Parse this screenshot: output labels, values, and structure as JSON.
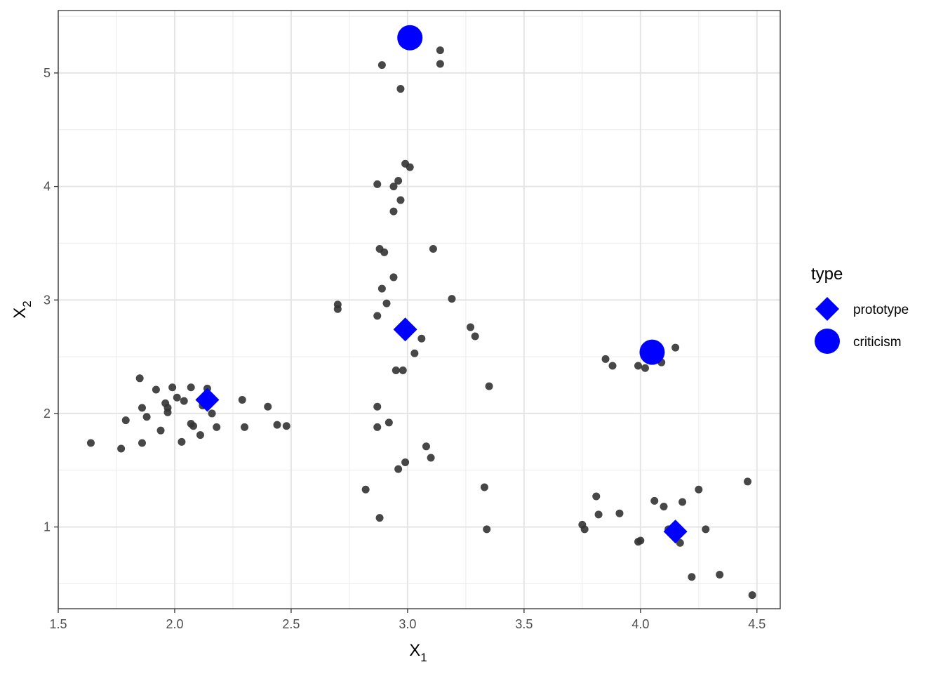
{
  "chart_data": {
    "type": "scatter",
    "xlabel": {
      "main": "X",
      "sub": "1"
    },
    "ylabel": {
      "main": "X",
      "sub": "2"
    },
    "xlim": [
      1.5,
      4.6
    ],
    "ylim": [
      0.28,
      5.55
    ],
    "x_ticks": [
      1.5,
      2.0,
      2.5,
      3.0,
      3.5,
      4.0,
      4.5
    ],
    "x_tick_labels": [
      "1.5",
      "2.0",
      "2.5",
      "3.0",
      "3.5",
      "4.0",
      "4.5"
    ],
    "y_ticks": [
      1,
      2,
      3,
      4,
      5
    ],
    "y_tick_labels": [
      "1",
      "2",
      "3",
      "4",
      "5"
    ],
    "grid": true,
    "legend": {
      "title": "type",
      "placement": "right",
      "entries": [
        {
          "label": "prototype",
          "shape": "diamond",
          "color": "#0000ff"
        },
        {
          "label": "criticism",
          "shape": "circle",
          "color": "#0000ff"
        }
      ]
    },
    "data_color": "#333333",
    "highlight_color": "#0000ff",
    "points": [
      [
        1.64,
        1.74
      ],
      [
        1.77,
        1.69
      ],
      [
        1.79,
        1.94
      ],
      [
        1.85,
        2.31
      ],
      [
        1.86,
        2.05
      ],
      [
        1.86,
        1.74
      ],
      [
        1.88,
        1.97
      ],
      [
        1.92,
        2.21
      ],
      [
        1.94,
        1.85
      ],
      [
        1.96,
        2.09
      ],
      [
        1.97,
        2.05
      ],
      [
        1.97,
        2.01
      ],
      [
        1.99,
        2.23
      ],
      [
        2.01,
        2.14
      ],
      [
        2.03,
        1.75
      ],
      [
        2.04,
        2.11
      ],
      [
        2.07,
        2.23
      ],
      [
        2.07,
        1.91
      ],
      [
        2.08,
        1.89
      ],
      [
        2.11,
        1.81
      ],
      [
        2.12,
        2.07
      ],
      [
        2.14,
        2.22
      ],
      [
        2.16,
        2.0
      ],
      [
        2.18,
        1.88
      ],
      [
        2.29,
        2.12
      ],
      [
        2.3,
        1.88
      ],
      [
        2.4,
        2.06
      ],
      [
        2.44,
        1.9
      ],
      [
        2.48,
        1.89
      ],
      [
        2.7,
        2.96
      ],
      [
        2.7,
        2.92
      ],
      [
        2.82,
        1.33
      ],
      [
        2.87,
        2.86
      ],
      [
        2.87,
        2.06
      ],
      [
        2.87,
        1.88
      ],
      [
        2.88,
        1.08
      ],
      [
        2.87,
        4.02
      ],
      [
        2.88,
        3.45
      ],
      [
        2.89,
        3.1
      ],
      [
        2.89,
        5.07
      ],
      [
        2.9,
        3.42
      ],
      [
        2.91,
        2.97
      ],
      [
        2.92,
        1.92
      ],
      [
        2.94,
        3.2
      ],
      [
        2.94,
        4.0
      ],
      [
        2.94,
        3.78
      ],
      [
        2.95,
        2.38
      ],
      [
        2.96,
        4.05
      ],
      [
        2.96,
        1.51
      ],
      [
        2.97,
        4.86
      ],
      [
        2.97,
        3.88
      ],
      [
        2.98,
        2.38
      ],
      [
        2.99,
        4.2
      ],
      [
        2.99,
        1.57
      ],
      [
        3.01,
        4.17
      ],
      [
        3.03,
        2.53
      ],
      [
        3.06,
        2.66
      ],
      [
        3.08,
        1.71
      ],
      [
        3.1,
        1.61
      ],
      [
        3.11,
        3.45
      ],
      [
        3.14,
        5.2
      ],
      [
        3.14,
        5.08
      ],
      [
        3.19,
        3.01
      ],
      [
        3.27,
        2.76
      ],
      [
        3.29,
        2.68
      ],
      [
        3.33,
        1.35
      ],
      [
        3.34,
        0.98
      ],
      [
        3.35,
        2.24
      ],
      [
        3.75,
        1.02
      ],
      [
        3.76,
        0.98
      ],
      [
        3.81,
        1.27
      ],
      [
        3.82,
        1.11
      ],
      [
        3.85,
        2.48
      ],
      [
        3.88,
        2.42
      ],
      [
        3.91,
        1.12
      ],
      [
        3.99,
        2.42
      ],
      [
        3.99,
        0.87
      ],
      [
        4.0,
        0.88
      ],
      [
        4.02,
        2.4
      ],
      [
        4.06,
        1.23
      ],
      [
        4.09,
        2.45
      ],
      [
        4.1,
        1.18
      ],
      [
        4.12,
        0.98
      ],
      [
        4.15,
        2.58
      ],
      [
        4.17,
        0.86
      ],
      [
        4.18,
        1.22
      ],
      [
        4.22,
        0.56
      ],
      [
        4.25,
        1.33
      ],
      [
        4.28,
        0.98
      ],
      [
        4.34,
        0.58
      ],
      [
        4.46,
        1.4
      ],
      [
        4.48,
        0.4
      ]
    ],
    "prototypes": [
      [
        2.14,
        2.12
      ],
      [
        2.99,
        2.74
      ],
      [
        4.15,
        0.96
      ]
    ],
    "criticisms": [
      [
        3.01,
        5.31
      ],
      [
        4.05,
        2.54
      ]
    ]
  }
}
